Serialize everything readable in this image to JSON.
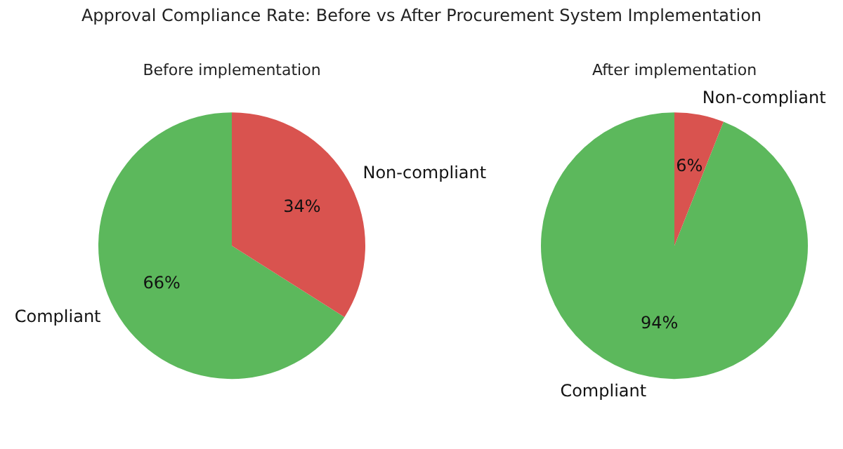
{
  "chart_data": [
    {
      "type": "pie",
      "title": "Approval Compliance Rate: Before vs After Procurement System Implementation",
      "subtitle": "Before implementation",
      "categories": [
        "Compliant",
        "Non-compliant"
      ],
      "values": [
        66,
        34
      ],
      "colors": [
        "#5cb85c",
        "#d9534f"
      ],
      "value_labels": [
        "66%",
        "34%"
      ],
      "legend": false
    },
    {
      "type": "pie",
      "subtitle": "After implementation",
      "categories": [
        "Compliant",
        "Non-compliant"
      ],
      "values": [
        94,
        6
      ],
      "colors": [
        "#5cb85c",
        "#d9534f"
      ],
      "value_labels": [
        "94%",
        "6%"
      ],
      "legend": false
    }
  ]
}
